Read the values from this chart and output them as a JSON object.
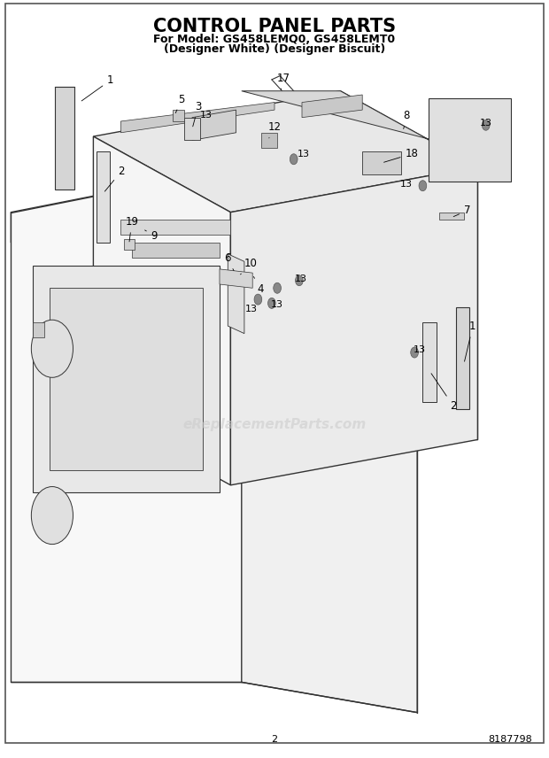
{
  "title_line1": "CONTROL PANEL PARTS",
  "title_line2": "For Model: GS458LEMQ0, GS458LEMT0",
  "title_line3": "(Designer White) (Designer Biscuit)",
  "page_number": "2",
  "part_number": "8187798",
  "watermark": "eReplacementParts.com",
  "bg_color": "#ffffff",
  "title_color": "#000000",
  "line_color": "#333333",
  "part_label_color": "#000000",
  "watermark_color": "#cccccc",
  "title_fontsize": 15,
  "subtitle_fontsize": 9,
  "label_fontsize": 8.5,
  "watermark_fontsize": 11,
  "footer_fontsize": 8
}
